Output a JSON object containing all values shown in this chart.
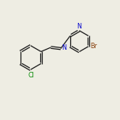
{
  "bg_color": "#eeede3",
  "atom_colors": {
    "N_imine": "#0000cc",
    "N_pyr": "#0000cc",
    "Br": "#8b4513",
    "Cl": "#008800"
  },
  "bond_color": "#1a1a1a",
  "bond_width": 0.9,
  "font_size": 5.8,
  "xlim": [
    0,
    10
  ],
  "ylim": [
    0,
    10
  ]
}
